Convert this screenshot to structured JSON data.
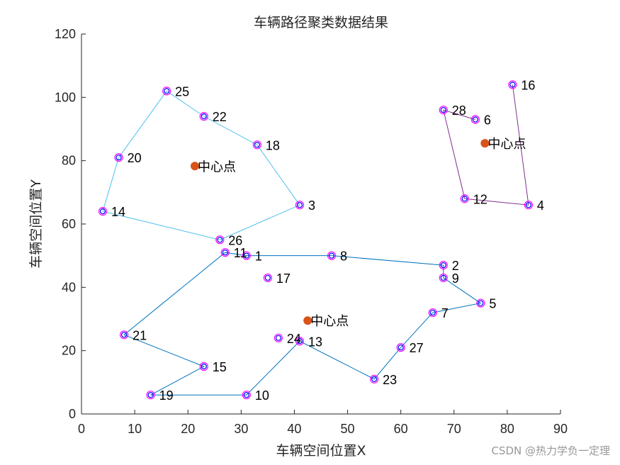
{
  "chart_data": {
    "type": "scatter",
    "title": "车辆路径聚类数据结果",
    "xlabel": "车辆空间位置X",
    "ylabel": "车辆空间位置Y",
    "xlim": [
      0,
      90
    ],
    "ylim": [
      0,
      120
    ],
    "xticks": [
      0,
      10,
      20,
      30,
      40,
      50,
      60,
      70,
      80,
      90
    ],
    "yticks": [
      0,
      20,
      40,
      60,
      80,
      100,
      120
    ],
    "grid": false,
    "points": [
      {
        "id": "1",
        "x": 31,
        "y": 50
      },
      {
        "id": "2",
        "x": 68,
        "y": 47
      },
      {
        "id": "3",
        "x": 41,
        "y": 66
      },
      {
        "id": "4",
        "x": 84,
        "y": 66
      },
      {
        "id": "5",
        "x": 75,
        "y": 35
      },
      {
        "id": "6",
        "x": 74,
        "y": 93
      },
      {
        "id": "7",
        "x": 66,
        "y": 32
      },
      {
        "id": "8",
        "x": 47,
        "y": 50
      },
      {
        "id": "9",
        "x": 68,
        "y": 43
      },
      {
        "id": "10",
        "x": 31,
        "y": 6
      },
      {
        "id": "11",
        "x": 27,
        "y": 51
      },
      {
        "id": "12",
        "x": 72,
        "y": 68
      },
      {
        "id": "13",
        "x": 41,
        "y": 23
      },
      {
        "id": "14",
        "x": 4,
        "y": 64
      },
      {
        "id": "15",
        "x": 23,
        "y": 15
      },
      {
        "id": "16",
        "x": 81,
        "y": 104
      },
      {
        "id": "17",
        "x": 35,
        "y": 43
      },
      {
        "id": "18",
        "x": 33,
        "y": 85
      },
      {
        "id": "19",
        "x": 13,
        "y": 6
      },
      {
        "id": "20",
        "x": 7,
        "y": 81
      },
      {
        "id": "21",
        "x": 8,
        "y": 25
      },
      {
        "id": "22",
        "x": 23,
        "y": 94
      },
      {
        "id": "23",
        "x": 55,
        "y": 11
      },
      {
        "id": "24",
        "x": 37,
        "y": 24
      },
      {
        "id": "25",
        "x": 16,
        "y": 102
      },
      {
        "id": "26",
        "x": 26,
        "y": 55
      },
      {
        "id": "27",
        "x": 60,
        "y": 21
      },
      {
        "id": "28",
        "x": 68,
        "y": 96
      }
    ],
    "routes": [
      {
        "color": "#4dbeee",
        "order": [
          "25",
          "22",
          "18",
          "3",
          "26",
          "14",
          "20",
          "25"
        ]
      },
      {
        "color": "#7e2f8e",
        "order": [
          "16",
          "4",
          "12",
          "28",
          "6"
        ]
      },
      {
        "color": "#0072bd",
        "order": [
          "2",
          "8",
          "1",
          "11",
          "21",
          "15",
          "19",
          "10",
          "13",
          "23",
          "27",
          "7",
          "5",
          "9",
          "2"
        ]
      }
    ],
    "centers": [
      {
        "label": "中心点",
        "x": 21.3,
        "y": 78.3
      },
      {
        "label": "中心点",
        "x": 75.8,
        "y": 85.5
      },
      {
        "label": "中心点",
        "x": 42.5,
        "y": 29.5
      }
    ],
    "marker_colors": {
      "outer": "#ff00ff",
      "inner": "#0000ff",
      "center": "#d95319"
    }
  },
  "watermark": "CSDN @热力学负一定理"
}
